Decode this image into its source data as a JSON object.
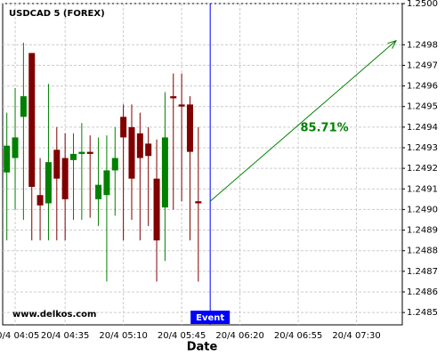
{
  "chart_data": {
    "type": "candlestick",
    "title": "USDCAD 5 (FOREX)",
    "watermark": "www.delkos.com",
    "x_label": "Date",
    "categories": [
      null,
      "20/4 04:05",
      null,
      null,
      null,
      null,
      null,
      "20/4 04:35",
      null,
      null,
      null,
      null,
      null,
      null,
      "20/4 05:10",
      null,
      null,
      null,
      null,
      null,
      null,
      "20/4 05:45",
      null,
      null,
      null,
      null,
      null,
      null,
      "20/4 06:20",
      null,
      null,
      null,
      null,
      null,
      null,
      "20/4 06:55",
      null,
      null,
      null,
      null,
      null,
      null,
      "20/4 07:30",
      null,
      null,
      null,
      null,
      null
    ],
    "open": [
      1.24918,
      1.24925,
      1.24945,
      1.24976,
      1.24907,
      1.24903,
      1.24929,
      1.24925,
      1.24924,
      1.24927,
      1.24928,
      1.24905,
      1.24907,
      1.24919,
      1.24945,
      1.2494,
      1.24937,
      1.24932,
      1.24915,
      1.24901,
      1.24955,
      1.24951,
      1.24951,
      1.24904,
      null,
      null,
      null,
      null,
      null,
      null,
      null,
      null,
      null,
      null,
      null,
      null,
      null,
      null,
      null,
      null,
      null,
      null,
      null,
      null,
      null,
      null,
      null,
      null
    ],
    "high": [
      1.24947,
      1.24959,
      1.24981,
      1.24976,
      1.24925,
      1.24961,
      1.2494,
      1.24937,
      1.24937,
      1.24942,
      1.24936,
      1.24935,
      1.24936,
      1.2494,
      1.24951,
      1.24951,
      1.24947,
      1.2494,
      1.24934,
      1.24957,
      1.24966,
      1.24966,
      1.24955,
      1.2494,
      null,
      null,
      null,
      null,
      null,
      null,
      null,
      null,
      null,
      null,
      null,
      null,
      null,
      null,
      null,
      null,
      null,
      null,
      null,
      null,
      null,
      null,
      null,
      null
    ],
    "low": [
      1.24885,
      1.249,
      1.24895,
      1.24885,
      1.24885,
      1.24885,
      1.24885,
      1.24885,
      1.24895,
      1.24895,
      1.24896,
      1.24892,
      1.24865,
      1.24897,
      1.24885,
      1.24895,
      1.24885,
      1.24892,
      1.24865,
      1.24875,
      1.249,
      1.24904,
      1.24885,
      1.24865,
      null,
      null,
      null,
      null,
      null,
      null,
      null,
      null,
      null,
      null,
      null,
      null,
      null,
      null,
      null,
      null,
      null,
      null,
      null,
      null,
      null,
      null,
      null,
      null
    ],
    "close": [
      1.24931,
      1.24935,
      1.24955,
      1.24911,
      1.24902,
      1.24923,
      1.24915,
      1.24905,
      1.24927,
      1.24928,
      1.24927,
      1.24912,
      1.24919,
      1.24925,
      1.24935,
      1.24915,
      1.24925,
      1.24926,
      1.24885,
      1.24935,
      1.24954,
      1.2495,
      1.24928,
      1.24903,
      null,
      null,
      null,
      null,
      null,
      null,
      null,
      null,
      null,
      null,
      null,
      null,
      null,
      null,
      null,
      null,
      null,
      null,
      null,
      null,
      null,
      null,
      null,
      null
    ],
    "up_color": "#008000",
    "down_color": "#800000",
    "ylim": [
      1.24844,
      1.25
    ],
    "yticks": [
      {
        "value": 1.25,
        "label": "1.2500"
      },
      {
        "value": 1.2498,
        "label": "1.2498"
      },
      {
        "value": 1.2497,
        "label": "1.2497"
      },
      {
        "value": 1.2496,
        "label": "1.2496"
      },
      {
        "value": 1.2495,
        "label": "1.2495"
      },
      {
        "value": 1.2494,
        "label": "1.2494"
      },
      {
        "value": 1.2493,
        "label": "1.2493"
      },
      {
        "value": 1.2492,
        "label": "1.2492"
      },
      {
        "value": 1.2491,
        "label": "1.2491"
      },
      {
        "value": 1.249,
        "label": "1.2490"
      },
      {
        "value": 1.2489,
        "label": "1.2489"
      },
      {
        "value": 1.2488,
        "label": "1.2488"
      },
      {
        "value": 1.2487,
        "label": "1.2487"
      },
      {
        "value": 1.2486,
        "label": "1.2486"
      },
      {
        "value": 1.2485,
        "label": "1.2485"
      }
    ],
    "grid": true,
    "event": {
      "index": 24,
      "label": "Event",
      "color": "#0000ff"
    },
    "forecast": {
      "label": "85.71%",
      "start_value": 1.24904,
      "end_value": 1.24982,
      "color": "#008000"
    }
  }
}
